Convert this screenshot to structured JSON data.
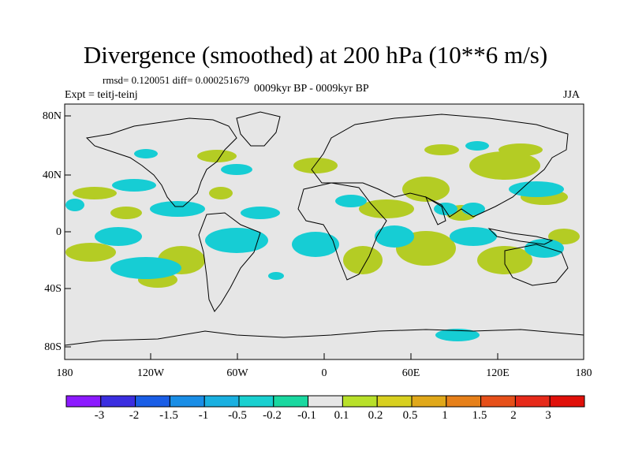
{
  "header": {
    "title": "Divergence (smoothed) at 200 hPa (10**6 m/s)",
    "stats": "rmsd= 0.120051 diff= 0.000251679",
    "period": "0009kyr BP - 0009kyr BP",
    "experiment": "Expt = teitj-teinj",
    "season": "JJA"
  },
  "axes": {
    "y_ticks": [
      "80N",
      "40N",
      "0",
      "40S",
      "80S"
    ],
    "x_ticks": [
      "180",
      "120W",
      "60W",
      "0",
      "60E",
      "120E",
      "180"
    ]
  },
  "colorbar": {
    "labels": [
      "-3",
      "-2",
      "-1.5",
      "-1",
      "-0.5",
      "-0.2",
      "-0.1",
      "0.1",
      "0.2",
      "0.5",
      "1",
      "1.5",
      "2",
      "3"
    ],
    "colors": [
      "#8c1aff",
      "#3b2ee0",
      "#1a5ee6",
      "#1a8ee6",
      "#1ab0e0",
      "#1ad0d0",
      "#1ad8a0",
      "#e6e6e6",
      "#b8e02a",
      "#d8d020",
      "#e0a81a",
      "#e6801a",
      "#e6501a",
      "#e62a1a",
      "#e0100a"
    ]
  },
  "colors": {
    "land_background": "#e6e6e6",
    "positive": "#b4cc24",
    "negative": "#16cdd4",
    "outline": "#000000"
  }
}
